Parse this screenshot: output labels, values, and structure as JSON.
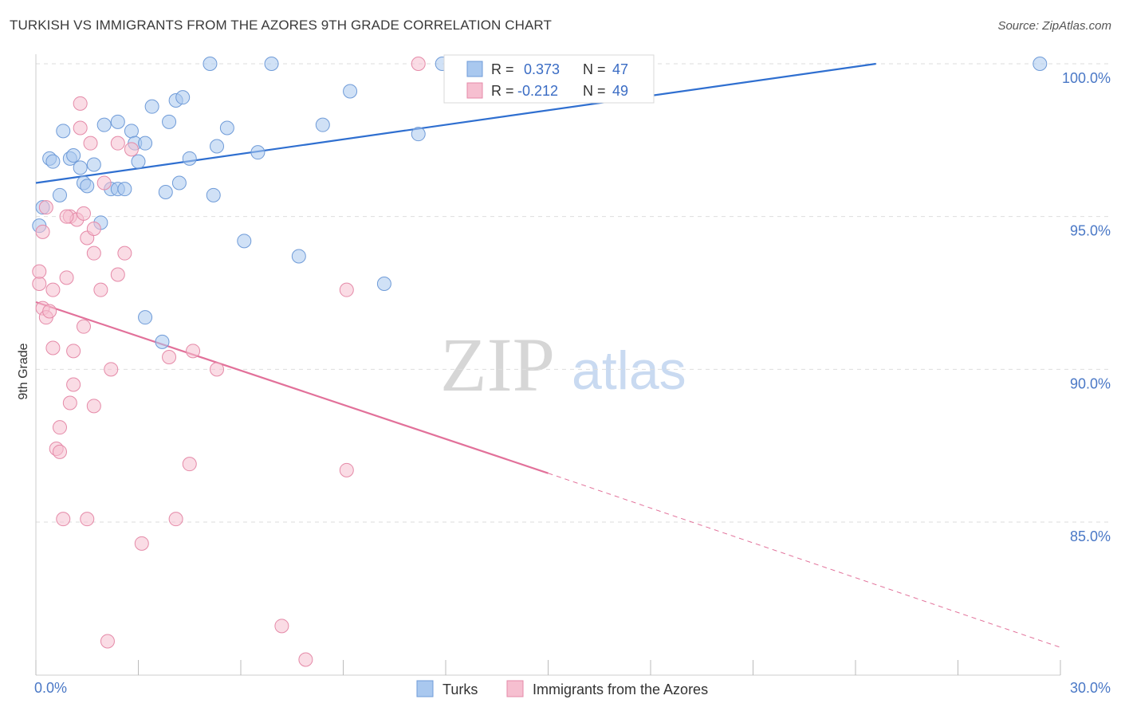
{
  "title": "TURKISH VS IMMIGRANTS FROM THE AZORES 9TH GRADE CORRELATION CHART",
  "source": "Source: ZipAtlas.com",
  "watermark": {
    "zip": "ZIP",
    "atlas": "atlas"
  },
  "colors": {
    "blue_fill": "#a9c8ef",
    "blue_stroke": "#6f9bd8",
    "blue_line": "#2f6fd0",
    "pink_fill": "#f6bfd0",
    "pink_stroke": "#e58aa8",
    "pink_line": "#e2719a",
    "grid": "#dedede",
    "axis_text": "#4a78c6"
  },
  "legend_top": {
    "rows": [
      {
        "r_label": "R =",
        "r_value": "0.373",
        "n_label": "N =",
        "n_value": "47"
      },
      {
        "r_label": "R =",
        "r_value": "-0.212",
        "n_label": "N =",
        "n_value": "49"
      }
    ]
  },
  "legend_bottom": {
    "series1": "Turks",
    "series2": "Immigrants from the Azores"
  },
  "chart_data": {
    "type": "scatter",
    "xlabel": "",
    "ylabel": "9th Grade",
    "xlim": [
      0,
      30
    ],
    "ylim": [
      80.5,
      100.5
    ],
    "x_tick_labels": [
      "0.0%",
      "30.0%"
    ],
    "y_ticks": [
      85,
      90,
      95,
      100
    ],
    "y_tick_labels": [
      "85.0%",
      "90.0%",
      "95.0%",
      "100.0%"
    ],
    "grid": true,
    "series": [
      {
        "name": "Turks",
        "color": "#a9c8ef",
        "trend": {
          "x": [
            0,
            24.6
          ],
          "y": [
            96.1,
            100.0
          ]
        },
        "points": [
          [
            0.1,
            94.7
          ],
          [
            0.2,
            95.3
          ],
          [
            0.4,
            96.9
          ],
          [
            0.5,
            96.8
          ],
          [
            0.7,
            95.7
          ],
          [
            0.8,
            97.8
          ],
          [
            1.0,
            96.9
          ],
          [
            1.1,
            97.0
          ],
          [
            1.3,
            96.6
          ],
          [
            1.4,
            96.1
          ],
          [
            1.5,
            96.0
          ],
          [
            1.7,
            96.7
          ],
          [
            1.9,
            94.8
          ],
          [
            2.0,
            98.0
          ],
          [
            2.2,
            95.9
          ],
          [
            2.4,
            95.9
          ],
          [
            2.4,
            98.1
          ],
          [
            2.6,
            95.9
          ],
          [
            2.8,
            97.8
          ],
          [
            2.9,
            97.4
          ],
          [
            3.0,
            96.8
          ],
          [
            3.2,
            97.4
          ],
          [
            3.2,
            91.7
          ],
          [
            3.4,
            98.6
          ],
          [
            3.7,
            90.9
          ],
          [
            3.8,
            95.8
          ],
          [
            3.9,
            98.1
          ],
          [
            4.1,
            98.8
          ],
          [
            4.2,
            96.1
          ],
          [
            4.3,
            98.9
          ],
          [
            4.5,
            96.9
          ],
          [
            5.1,
            100.0
          ],
          [
            5.2,
            95.7
          ],
          [
            5.3,
            97.3
          ],
          [
            5.6,
            97.9
          ],
          [
            6.1,
            94.2
          ],
          [
            6.5,
            97.1
          ],
          [
            6.9,
            100.0
          ],
          [
            7.7,
            93.7
          ],
          [
            8.4,
            98.0
          ],
          [
            9.2,
            99.1
          ],
          [
            10.2,
            92.8
          ],
          [
            11.2,
            97.7
          ],
          [
            11.9,
            100.0
          ],
          [
            12.3,
            100.0
          ],
          [
            12.4,
            100.0
          ],
          [
            29.4,
            100.0
          ]
        ]
      },
      {
        "name": "Immigrants from the Azores",
        "color": "#f6bfd0",
        "trend": {
          "x": [
            0,
            15.0
          ],
          "y": [
            92.2,
            86.6
          ]
        },
        "trend_dashed": {
          "x": [
            15.0,
            30.0
          ],
          "y": [
            86.6,
            80.9
          ]
        },
        "points": [
          [
            0.1,
            92.8
          ],
          [
            0.1,
            93.2
          ],
          [
            0.2,
            94.5
          ],
          [
            0.2,
            92.0
          ],
          [
            0.3,
            95.3
          ],
          [
            0.3,
            91.7
          ],
          [
            0.4,
            91.9
          ],
          [
            0.5,
            90.7
          ],
          [
            0.5,
            92.6
          ],
          [
            0.6,
            87.4
          ],
          [
            0.7,
            87.3
          ],
          [
            0.7,
            88.1
          ],
          [
            0.8,
            85.1
          ],
          [
            0.9,
            93.0
          ],
          [
            1.0,
            95.0
          ],
          [
            1.0,
            88.9
          ],
          [
            1.1,
            90.6
          ],
          [
            1.1,
            89.5
          ],
          [
            1.2,
            94.9
          ],
          [
            1.3,
            97.9
          ],
          [
            1.3,
            98.7
          ],
          [
            1.4,
            95.1
          ],
          [
            1.4,
            91.4
          ],
          [
            1.5,
            85.1
          ],
          [
            1.5,
            94.3
          ],
          [
            1.6,
            97.4
          ],
          [
            1.7,
            93.8
          ],
          [
            1.7,
            88.8
          ],
          [
            1.7,
            94.6
          ],
          [
            1.9,
            92.6
          ],
          [
            2.0,
            96.1
          ],
          [
            2.1,
            81.1
          ],
          [
            2.2,
            90.0
          ],
          [
            2.4,
            93.1
          ],
          [
            2.4,
            97.4
          ],
          [
            2.6,
            93.8
          ],
          [
            2.8,
            97.2
          ],
          [
            3.1,
            84.3
          ],
          [
            3.9,
            90.4
          ],
          [
            4.1,
            85.1
          ],
          [
            4.5,
            86.9
          ],
          [
            4.6,
            90.6
          ],
          [
            5.3,
            90.0
          ],
          [
            7.2,
            81.6
          ],
          [
            7.9,
            80.5
          ],
          [
            9.1,
            92.6
          ],
          [
            9.1,
            86.7
          ],
          [
            11.2,
            100.0
          ],
          [
            0.9,
            95.0
          ]
        ]
      }
    ]
  }
}
